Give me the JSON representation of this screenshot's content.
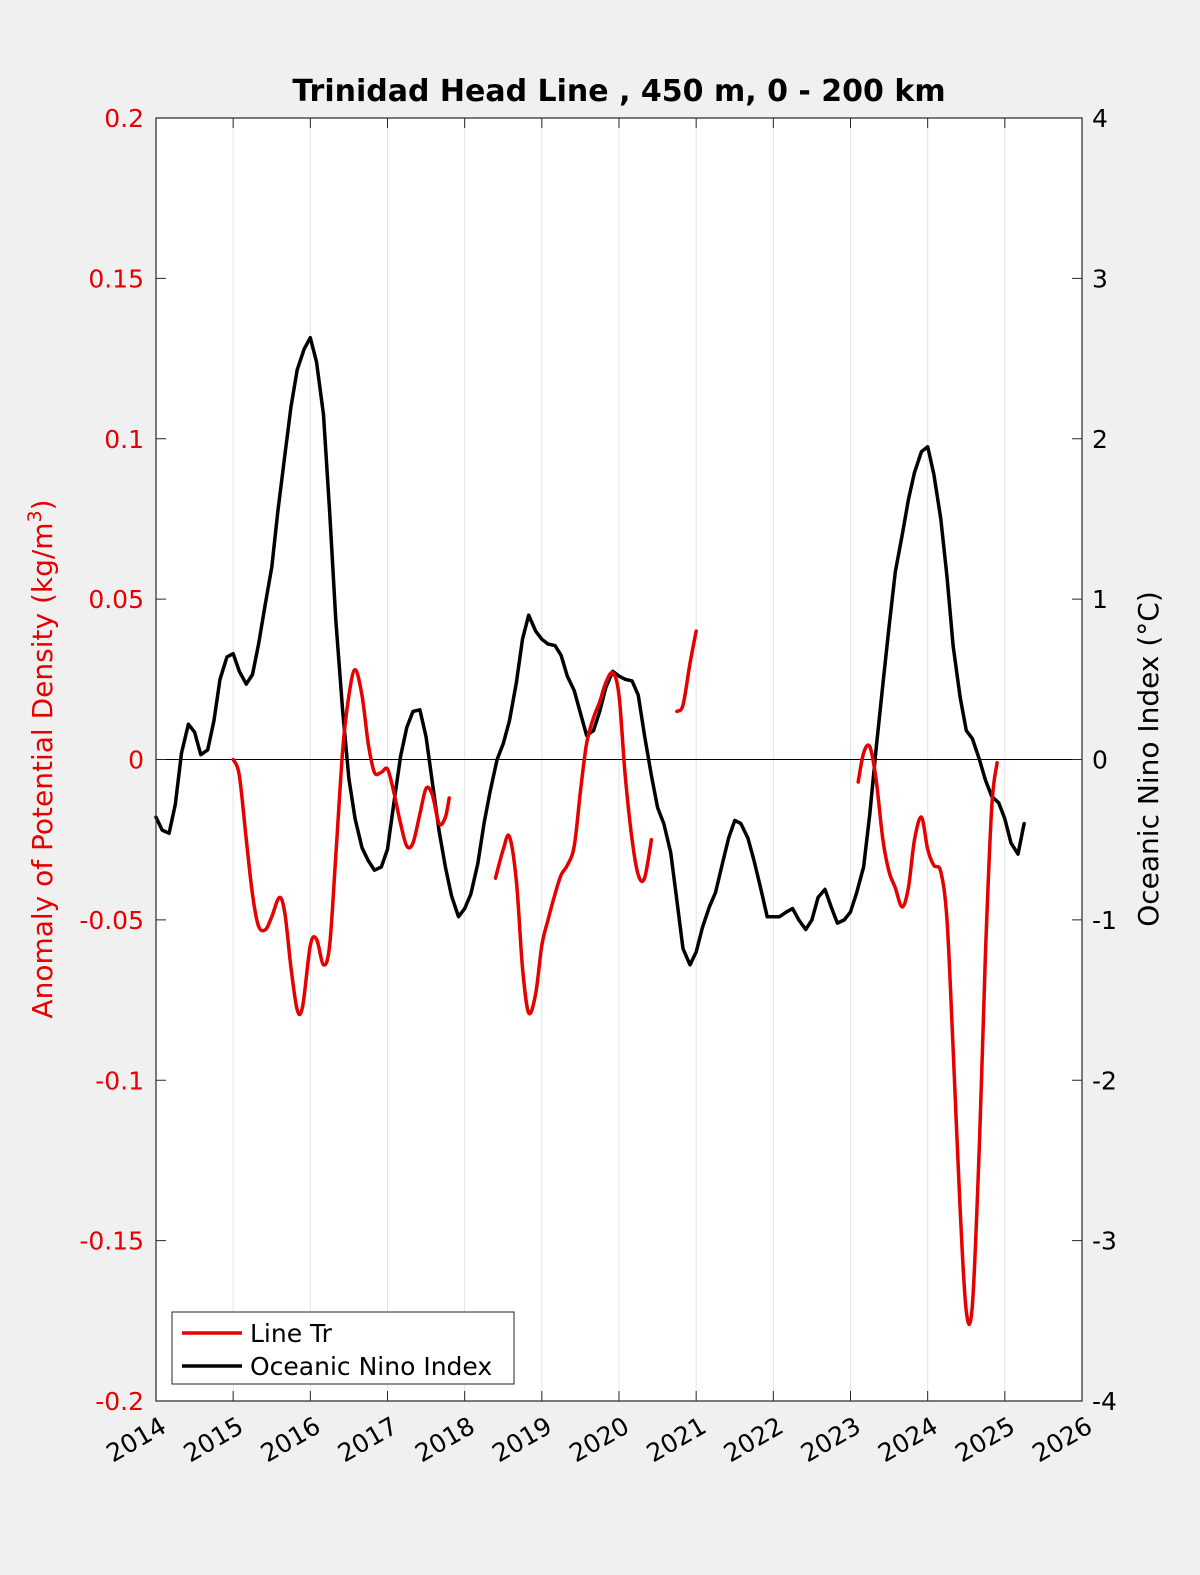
{
  "chart_data": {
    "type": "line",
    "title": "Trinidad Head Line , 450 m, 0 - 200 km",
    "ylabel_left": "Anomaly of Potential Density (kg/m",
    "ylabel_left_sup": "3",
    "ylabel_left_close": ")",
    "ylabel_right": "Oceanic Nino Index (°C)",
    "xlim": [
      2014,
      2026
    ],
    "ylim_left": [
      -0.2,
      0.2
    ],
    "ylim_right": [
      -4,
      4
    ],
    "x_ticks": [
      "2014",
      "2015",
      "2016",
      "2017",
      "2018",
      "2019",
      "2020",
      "2021",
      "2022",
      "2023",
      "2024",
      "2025",
      "2026"
    ],
    "y_left_ticks": [
      "0.2",
      "0.15",
      "0.1",
      "0.05",
      "0",
      "-0.05",
      "-0.1",
      "-0.15",
      "-0.2"
    ],
    "y_right_ticks": [
      "4",
      "3",
      "2",
      "1",
      "0",
      "-1",
      "-2",
      "-3",
      "-4"
    ],
    "grid": "vertical",
    "legend_position": "bottom-left",
    "colors": {
      "line_tr": "#e60000",
      "oni": "#000000",
      "background": "#f0f0f0",
      "plot_bg": "#ffffff"
    },
    "series": [
      {
        "name": "Line Tr",
        "axis": "left",
        "segments": [
          [
            [
              2015.0,
              0.0
            ],
            [
              2015.08,
              -0.005
            ],
            [
              2015.17,
              -0.025
            ],
            [
              2015.25,
              -0.042
            ],
            [
              2015.33,
              -0.052
            ],
            [
              2015.42,
              -0.053
            ],
            [
              2015.5,
              -0.049
            ],
            [
              2015.6,
              -0.043
            ],
            [
              2015.67,
              -0.048
            ],
            [
              2015.75,
              -0.065
            ],
            [
              2015.83,
              -0.078
            ],
            [
              2015.9,
              -0.077
            ],
            [
              2016.0,
              -0.058
            ],
            [
              2016.08,
              -0.056
            ],
            [
              2016.17,
              -0.064
            ],
            [
              2016.25,
              -0.058
            ],
            [
              2016.33,
              -0.03
            ],
            [
              2016.42,
              0.003
            ],
            [
              2016.5,
              0.02
            ],
            [
              2016.58,
              0.028
            ],
            [
              2016.67,
              0.02
            ],
            [
              2016.75,
              0.005
            ],
            [
              2016.83,
              -0.004
            ],
            [
              2016.92,
              -0.004
            ],
            [
              2017.0,
              -0.003
            ],
            [
              2017.08,
              -0.01
            ],
            [
              2017.17,
              -0.02
            ],
            [
              2017.25,
              -0.027
            ],
            [
              2017.33,
              -0.026
            ],
            [
              2017.42,
              -0.017
            ],
            [
              2017.5,
              -0.009
            ],
            [
              2017.58,
              -0.011
            ],
            [
              2017.67,
              -0.02
            ],
            [
              2017.75,
              -0.018
            ],
            [
              2017.8,
              -0.012
            ]
          ],
          [
            [
              2018.4,
              -0.037
            ],
            [
              2018.5,
              -0.028
            ],
            [
              2018.58,
              -0.024
            ],
            [
              2018.67,
              -0.038
            ],
            [
              2018.75,
              -0.065
            ],
            [
              2018.83,
              -0.079
            ],
            [
              2018.92,
              -0.073
            ],
            [
              2019.0,
              -0.058
            ],
            [
              2019.08,
              -0.05
            ],
            [
              2019.17,
              -0.042
            ],
            [
              2019.25,
              -0.036
            ],
            [
              2019.33,
              -0.033
            ],
            [
              2019.42,
              -0.027
            ],
            [
              2019.5,
              -0.01
            ],
            [
              2019.58,
              0.005
            ],
            [
              2019.67,
              0.013
            ],
            [
              2019.75,
              0.018
            ],
            [
              2019.83,
              0.024
            ],
            [
              2019.92,
              0.027
            ],
            [
              2020.0,
              0.02
            ],
            [
              2020.08,
              -0.005
            ],
            [
              2020.17,
              -0.025
            ],
            [
              2020.25,
              -0.036
            ],
            [
              2020.33,
              -0.037
            ],
            [
              2020.42,
              -0.025
            ]
          ],
          [
            [
              2020.75,
              0.015
            ],
            [
              2020.83,
              0.017
            ],
            [
              2020.92,
              0.03
            ],
            [
              2021.0,
              0.04
            ]
          ],
          [
            [
              2023.1,
              -0.007
            ],
            [
              2023.17,
              0.002
            ],
            [
              2023.25,
              0.004
            ],
            [
              2023.33,
              -0.006
            ],
            [
              2023.42,
              -0.025
            ],
            [
              2023.5,
              -0.035
            ],
            [
              2023.58,
              -0.04
            ],
            [
              2023.67,
              -0.046
            ],
            [
              2023.75,
              -0.04
            ],
            [
              2023.83,
              -0.025
            ],
            [
              2023.92,
              -0.018
            ],
            [
              2024.0,
              -0.028
            ],
            [
              2024.08,
              -0.033
            ],
            [
              2024.17,
              -0.035
            ],
            [
              2024.25,
              -0.05
            ],
            [
              2024.33,
              -0.09
            ],
            [
              2024.42,
              -0.14
            ],
            [
              2024.5,
              -0.172
            ],
            [
              2024.58,
              -0.17
            ],
            [
              2024.67,
              -0.12
            ],
            [
              2024.75,
              -0.06
            ],
            [
              2024.83,
              -0.015
            ],
            [
              2024.9,
              -0.001
            ]
          ]
        ]
      },
      {
        "name": "Oceanic Nino Index",
        "axis": "right",
        "segments": [
          [
            [
              2014.0,
              -0.36
            ],
            [
              2014.08,
              -0.44
            ],
            [
              2014.17,
              -0.46
            ],
            [
              2014.25,
              -0.28
            ],
            [
              2014.33,
              0.04
            ],
            [
              2014.42,
              0.22
            ],
            [
              2014.5,
              0.17
            ],
            [
              2014.58,
              0.03
            ],
            [
              2014.67,
              0.06
            ],
            [
              2014.75,
              0.24
            ],
            [
              2014.83,
              0.5
            ],
            [
              2014.92,
              0.64
            ],
            [
              2015.0,
              0.66
            ],
            [
              2015.08,
              0.55
            ],
            [
              2015.17,
              0.47
            ],
            [
              2015.25,
              0.53
            ],
            [
              2015.33,
              0.72
            ],
            [
              2015.42,
              0.98
            ],
            [
              2015.5,
              1.2
            ],
            [
              2015.58,
              1.55
            ],
            [
              2015.67,
              1.9
            ],
            [
              2015.75,
              2.2
            ],
            [
              2015.83,
              2.43
            ],
            [
              2015.92,
              2.56
            ],
            [
              2016.0,
              2.63
            ],
            [
              2016.08,
              2.48
            ],
            [
              2016.17,
              2.15
            ],
            [
              2016.25,
              1.55
            ],
            [
              2016.33,
              0.87
            ],
            [
              2016.42,
              0.3
            ],
            [
              2016.5,
              -0.12
            ],
            [
              2016.58,
              -0.37
            ],
            [
              2016.67,
              -0.55
            ],
            [
              2016.75,
              -0.63
            ],
            [
              2016.83,
              -0.69
            ],
            [
              2016.92,
              -0.67
            ],
            [
              2017.0,
              -0.56
            ],
            [
              2017.08,
              -0.28
            ],
            [
              2017.17,
              0.02
            ],
            [
              2017.25,
              0.2
            ],
            [
              2017.33,
              0.3
            ],
            [
              2017.42,
              0.31
            ],
            [
              2017.5,
              0.14
            ],
            [
              2017.58,
              -0.14
            ],
            [
              2017.67,
              -0.45
            ],
            [
              2017.75,
              -0.67
            ],
            [
              2017.83,
              -0.85
            ],
            [
              2017.92,
              -0.98
            ],
            [
              2018.0,
              -0.93
            ],
            [
              2018.08,
              -0.84
            ],
            [
              2018.17,
              -0.65
            ],
            [
              2018.25,
              -0.4
            ],
            [
              2018.33,
              -0.2
            ],
            [
              2018.42,
              0.0
            ],
            [
              2018.5,
              0.1
            ],
            [
              2018.58,
              0.24
            ],
            [
              2018.67,
              0.48
            ],
            [
              2018.75,
              0.75
            ],
            [
              2018.83,
              0.9
            ],
            [
              2018.92,
              0.8
            ],
            [
              2019.0,
              0.75
            ],
            [
              2019.08,
              0.72
            ],
            [
              2019.17,
              0.71
            ],
            [
              2019.25,
              0.65
            ],
            [
              2019.33,
              0.52
            ],
            [
              2019.42,
              0.43
            ],
            [
              2019.5,
              0.29
            ],
            [
              2019.58,
              0.15
            ],
            [
              2019.67,
              0.18
            ],
            [
              2019.75,
              0.3
            ],
            [
              2019.83,
              0.45
            ],
            [
              2019.92,
              0.55
            ],
            [
              2020.0,
              0.52
            ],
            [
              2020.08,
              0.5
            ],
            [
              2020.17,
              0.49
            ],
            [
              2020.25,
              0.4
            ],
            [
              2020.33,
              0.15
            ],
            [
              2020.42,
              -0.1
            ],
            [
              2020.5,
              -0.3
            ],
            [
              2020.58,
              -0.4
            ],
            [
              2020.67,
              -0.58
            ],
            [
              2020.75,
              -0.88
            ],
            [
              2020.83,
              -1.18
            ],
            [
              2020.92,
              -1.28
            ],
            [
              2021.0,
              -1.2
            ],
            [
              2021.08,
              -1.05
            ],
            [
              2021.17,
              -0.92
            ],
            [
              2021.25,
              -0.83
            ],
            [
              2021.33,
              -0.67
            ],
            [
              2021.42,
              -0.49
            ],
            [
              2021.5,
              -0.38
            ],
            [
              2021.58,
              -0.4
            ],
            [
              2021.67,
              -0.49
            ],
            [
              2021.75,
              -0.63
            ],
            [
              2021.83,
              -0.79
            ],
            [
              2021.92,
              -0.98
            ],
            [
              2022.0,
              -0.98
            ],
            [
              2022.08,
              -0.98
            ],
            [
              2022.17,
              -0.95
            ],
            [
              2022.25,
              -0.93
            ],
            [
              2022.33,
              -1.0
            ],
            [
              2022.42,
              -1.06
            ],
            [
              2022.5,
              -1.0
            ],
            [
              2022.58,
              -0.86
            ],
            [
              2022.67,
              -0.81
            ],
            [
              2022.75,
              -0.92
            ],
            [
              2022.83,
              -1.02
            ],
            [
              2022.92,
              -1.0
            ],
            [
              2023.0,
              -0.95
            ],
            [
              2023.08,
              -0.83
            ],
            [
              2023.17,
              -0.67
            ],
            [
              2023.25,
              -0.34
            ],
            [
              2023.33,
              0.06
            ],
            [
              2023.42,
              0.47
            ],
            [
              2023.5,
              0.83
            ],
            [
              2023.58,
              1.17
            ],
            [
              2023.67,
              1.4
            ],
            [
              2023.75,
              1.62
            ],
            [
              2023.83,
              1.79
            ],
            [
              2023.92,
              1.92
            ],
            [
              2024.0,
              1.95
            ],
            [
              2024.08,
              1.78
            ],
            [
              2024.17,
              1.5
            ],
            [
              2024.25,
              1.14
            ],
            [
              2024.33,
              0.71
            ],
            [
              2024.42,
              0.39
            ],
            [
              2024.5,
              0.18
            ],
            [
              2024.58,
              0.13
            ],
            [
              2024.67,
              0.0
            ],
            [
              2024.75,
              -0.13
            ],
            [
              2024.83,
              -0.23
            ],
            [
              2024.92,
              -0.27
            ],
            [
              2025.0,
              -0.37
            ],
            [
              2025.08,
              -0.52
            ],
            [
              2025.17,
              -0.59
            ],
            [
              2025.25,
              -0.4
            ]
          ]
        ]
      }
    ]
  }
}
